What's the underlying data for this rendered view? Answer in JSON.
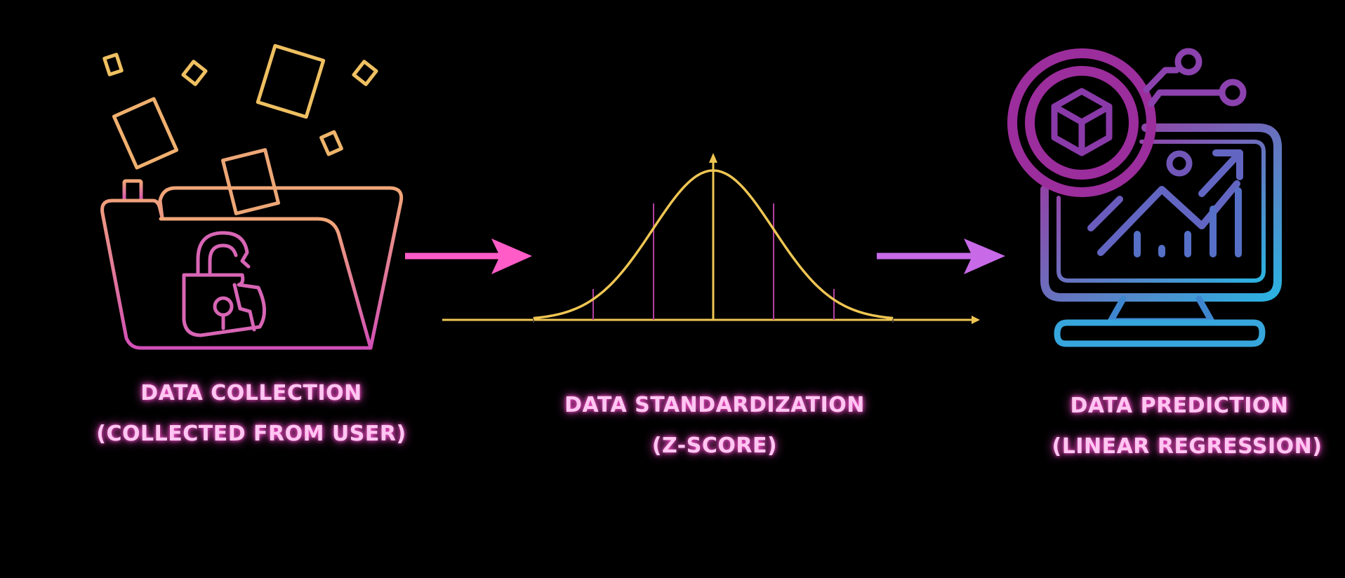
{
  "colors": {
    "background": "#000000",
    "label_text": "#FFC6F1",
    "label_glow": "#FF4FD1",
    "folder_top": "#F2A777",
    "folder_bottom": "#D24FB7",
    "papers": "#EFC062",
    "curve": "#EFC653",
    "curve_divisions": "#B23FA0",
    "arrow_1": "#FF5CC8",
    "arrow_2": "#C86AE8",
    "monitor_top": "#A82C9A",
    "monitor_bottom": "#2BB3E1"
  },
  "icons": {
    "collection": "open-folder-with-unlocked-padlock-icon",
    "standardization": "normal-distribution-curve-icon",
    "prediction": "monitor-with-growth-chart-and-cube-icon",
    "connector": "right-arrow-icon"
  },
  "steps": [
    {
      "line_1": "DATA COLLECTION",
      "line_2": "(COLLECTED FROM USER)"
    },
    {
      "line_1": "DATA STANDARDIZATION",
      "line_2": "(Z-SCORE)"
    },
    {
      "line_1": "DATA PREDICTION",
      "line_2": "(LINEAR REGRESSION)"
    }
  ]
}
